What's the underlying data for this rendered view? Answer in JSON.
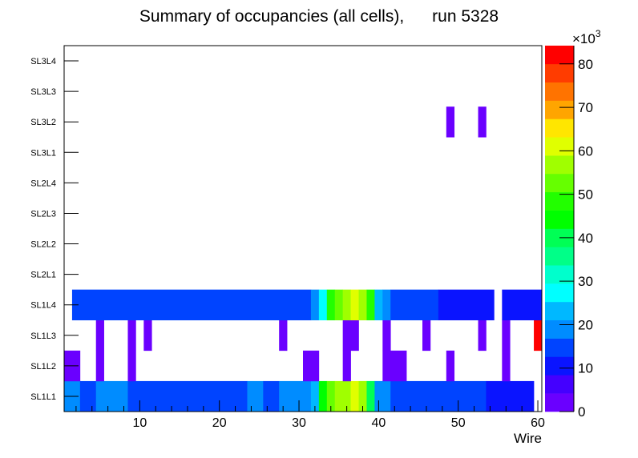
{
  "chart_data": {
    "type": "heatmap",
    "title": "Summary of occupancies (all cells),      run 5328",
    "xlabel": "Wire",
    "ylabel": "",
    "xlim": [
      0.5,
      60.5
    ],
    "x_ticks": [
      10,
      20,
      30,
      40,
      50,
      60
    ],
    "y_categories": [
      "SL1L1",
      "SL1L2",
      "SL1L3",
      "SL1L4",
      "SL2L1",
      "SL2L2",
      "SL2L3",
      "SL2L4",
      "SL3L1",
      "SL3L2",
      "SL3L3",
      "SL3L4"
    ],
    "z_unit_label": "×10",
    "z_unit_exponent": "3",
    "zlim": [
      0,
      84.2
    ],
    "z_ticks": [
      0,
      10,
      20,
      30,
      40,
      50,
      60,
      70,
      80
    ],
    "palette": [
      "#6a00ff",
      "#4400ff",
      "#0a14ff",
      "#0044ff",
      "#008cff",
      "#00b8ff",
      "#00ffff",
      "#00ffcc",
      "#00ff88",
      "#00ff55",
      "#00ff00",
      "#22ff00",
      "#66ff00",
      "#a0ff00",
      "#e0ff00",
      "#ffe600",
      "#ffa500",
      "#ff7300",
      "#ff3c00",
      "#ff0000"
    ],
    "value_scale": "thousands",
    "rows": {
      "SL1L1": [
        [
          1,
          2,
          18.9
        ],
        [
          3,
          4,
          14.7
        ],
        [
          5,
          8,
          18.9
        ],
        [
          9,
          23,
          14.7
        ],
        [
          24,
          25,
          18.9
        ],
        [
          26,
          27,
          14.7
        ],
        [
          28,
          31,
          18.9
        ],
        [
          32,
          32,
          23.2
        ],
        [
          33,
          33,
          44.2
        ],
        [
          34,
          34,
          52.6
        ],
        [
          35,
          36,
          56.8
        ],
        [
          37,
          37,
          61.0
        ],
        [
          38,
          38,
          56.8
        ],
        [
          39,
          39,
          40.0
        ],
        [
          40,
          41,
          18.9
        ],
        [
          42,
          53,
          14.7
        ],
        [
          54,
          59,
          10.5
        ]
      ],
      "SL1L2": [
        [
          1,
          2,
          2.1
        ],
        [
          5,
          5,
          2.1
        ],
        [
          9,
          9,
          2.1
        ],
        [
          31,
          32,
          2.1
        ],
        [
          36,
          36,
          2.1
        ],
        [
          41,
          43,
          2.1
        ],
        [
          49,
          49,
          2.1
        ],
        [
          56,
          56,
          2.1
        ]
      ],
      "SL1L3": [
        [
          5,
          5,
          2.1
        ],
        [
          9,
          9,
          2.1
        ],
        [
          11,
          11,
          2.1
        ],
        [
          28,
          28,
          2.1
        ],
        [
          36,
          37,
          2.1
        ],
        [
          41,
          41,
          2.1
        ],
        [
          46,
          46,
          2.1
        ],
        [
          53,
          53,
          2.1
        ],
        [
          56,
          56,
          2.1
        ],
        [
          60,
          60,
          82.0
        ]
      ],
      "SL1L4": [
        [
          2,
          31,
          14.7
        ],
        [
          32,
          32,
          18.9
        ],
        [
          33,
          33,
          27.4
        ],
        [
          34,
          34,
          48.4
        ],
        [
          35,
          35,
          52.6
        ],
        [
          36,
          36,
          56.8
        ],
        [
          37,
          37,
          61.0
        ],
        [
          38,
          38,
          56.8
        ],
        [
          39,
          39,
          48.4
        ],
        [
          40,
          40,
          23.2
        ],
        [
          41,
          41,
          18.9
        ],
        [
          42,
          47,
          14.7
        ],
        [
          48,
          54,
          10.5
        ],
        [
          56,
          60,
          10.5
        ]
      ],
      "SL2L1": [],
      "SL2L2": [],
      "SL2L3": [],
      "SL2L4": [],
      "SL3L1": [],
      "SL3L2": [
        [
          49,
          49,
          2.1
        ],
        [
          53,
          53,
          2.1
        ]
      ],
      "SL3L3": [],
      "SL3L4": []
    }
  }
}
